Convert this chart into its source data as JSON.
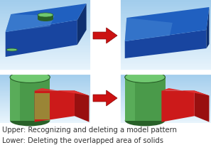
{
  "bg_color": "#b8d8ec",
  "panel_bg_top": "#c8e4f5",
  "panel_bg_bot": "#aed4ec",
  "blue_dark": "#1845a0",
  "blue_mid": "#2060c0",
  "blue_light": "#5090d8",
  "blue_edge": "#80b8e8",
  "green_top": "#70c870",
  "green_side": "#4a9a4a",
  "green_dark": "#286028",
  "green_overlap": "#8aaa40",
  "red_front": "#cc1a1a",
  "red_right": "#991010",
  "red_top": "#e03030",
  "arrow_color": "#cc1111",
  "white": "#ffffff",
  "text_upper": "Upper: Recognizing and deleting a model pattern",
  "text_lower": "Lower: Deleting the overlapped area of solids",
  "text_color": "#333333",
  "text_fontsize": 7.2,
  "sep_color": "#cccccc"
}
